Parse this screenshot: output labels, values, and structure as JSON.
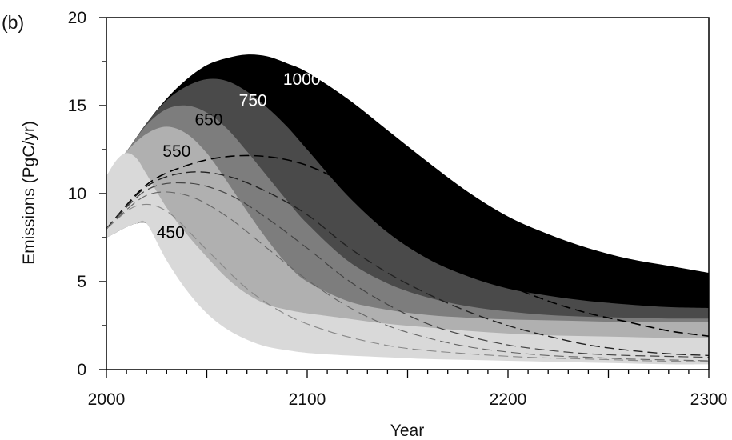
{
  "chart_data": {
    "type": "area",
    "panel_label": "(b)",
    "xlabel": "Year",
    "ylabel": "Emissions (PgC/yr)",
    "xlim": [
      2000,
      2300
    ],
    "ylim": [
      0,
      20
    ],
    "x_ticks": [
      2000,
      2100,
      2200,
      2300
    ],
    "y_ticks": [
      0,
      5,
      10,
      15,
      20
    ],
    "grid": false,
    "legend": "none",
    "bands": [
      {
        "label": "1000",
        "color": "#000000",
        "label_color": "#ffffff",
        "label_at": [
          2088,
          16.5
        ],
        "upper": [
          [
            2000,
            11.0
          ],
          [
            2010,
            12.4
          ],
          [
            2020,
            14.0
          ],
          [
            2030,
            15.4
          ],
          [
            2040,
            16.5
          ],
          [
            2050,
            17.3
          ],
          [
            2060,
            17.7
          ],
          [
            2070,
            17.9
          ],
          [
            2080,
            17.8
          ],
          [
            2090,
            17.4
          ],
          [
            2100,
            16.9
          ],
          [
            2120,
            15.4
          ],
          [
            2140,
            13.6
          ],
          [
            2160,
            11.8
          ],
          [
            2180,
            10.1
          ],
          [
            2200,
            8.7
          ],
          [
            2220,
            7.7
          ],
          [
            2240,
            6.9
          ],
          [
            2260,
            6.3
          ],
          [
            2280,
            5.9
          ],
          [
            2300,
            5.5
          ]
        ],
        "lower": [
          [
            2000,
            7.5
          ],
          [
            2005,
            7.8
          ],
          [
            2010,
            8.1
          ],
          [
            2015,
            8.3
          ],
          [
            2020,
            8.3
          ],
          [
            2030,
            7.6
          ],
          [
            2040,
            6.7
          ],
          [
            2050,
            5.7
          ],
          [
            2060,
            4.8
          ],
          [
            2070,
            4.1
          ],
          [
            2080,
            3.6
          ],
          [
            2090,
            3.3
          ],
          [
            2100,
            3.1
          ],
          [
            2120,
            2.7
          ],
          [
            2140,
            2.3
          ],
          [
            2160,
            2.0
          ],
          [
            2180,
            1.7
          ],
          [
            2200,
            1.5
          ],
          [
            2220,
            1.3
          ],
          [
            2240,
            1.15
          ],
          [
            2260,
            1.0
          ],
          [
            2280,
            0.9
          ],
          [
            2300,
            0.8
          ]
        ]
      },
      {
        "label": "750",
        "color": "#4a4a4a",
        "label_color": "#ffffff",
        "label_at": [
          2066,
          15.3
        ],
        "upper": [
          [
            2000,
            11.0
          ],
          [
            2010,
            12.4
          ],
          [
            2020,
            14.0
          ],
          [
            2030,
            15.3
          ],
          [
            2040,
            16.1
          ],
          [
            2050,
            16.5
          ],
          [
            2060,
            16.4
          ],
          [
            2070,
            15.8
          ],
          [
            2080,
            14.9
          ],
          [
            2090,
            13.8
          ],
          [
            2100,
            12.5
          ],
          [
            2120,
            9.9
          ],
          [
            2140,
            7.8
          ],
          [
            2160,
            6.3
          ],
          [
            2180,
            5.3
          ],
          [
            2200,
            4.6
          ],
          [
            2220,
            4.2
          ],
          [
            2240,
            3.9
          ],
          [
            2260,
            3.7
          ],
          [
            2280,
            3.55
          ],
          [
            2300,
            3.5
          ]
        ],
        "lower": [
          [
            2000,
            7.5
          ],
          [
            2005,
            7.8
          ],
          [
            2010,
            8.1
          ],
          [
            2015,
            8.3
          ],
          [
            2020,
            8.3
          ],
          [
            2030,
            7.6
          ],
          [
            2040,
            6.7
          ],
          [
            2050,
            5.7
          ],
          [
            2060,
            4.8
          ],
          [
            2070,
            4.1
          ],
          [
            2080,
            3.6
          ],
          [
            2090,
            3.3
          ],
          [
            2100,
            3.1
          ],
          [
            2120,
            2.7
          ],
          [
            2140,
            2.3
          ],
          [
            2160,
            2.0
          ],
          [
            2180,
            1.7
          ],
          [
            2200,
            1.5
          ],
          [
            2220,
            1.3
          ],
          [
            2240,
            1.15
          ],
          [
            2260,
            1.0
          ],
          [
            2280,
            0.9
          ],
          [
            2300,
            0.8
          ]
        ]
      },
      {
        "label": "650",
        "color": "#7d7d7d",
        "label_color": "#000000",
        "label_at": [
          2044,
          14.2
        ],
        "upper": [
          [
            2000,
            11.0
          ],
          [
            2010,
            12.4
          ],
          [
            2020,
            13.9
          ],
          [
            2030,
            14.8
          ],
          [
            2040,
            15.0
          ],
          [
            2050,
            14.6
          ],
          [
            2060,
            13.7
          ],
          [
            2070,
            12.4
          ],
          [
            2080,
            11.0
          ],
          [
            2090,
            9.6
          ],
          [
            2100,
            8.3
          ],
          [
            2120,
            6.2
          ],
          [
            2140,
            4.9
          ],
          [
            2160,
            4.1
          ],
          [
            2180,
            3.6
          ],
          [
            2200,
            3.3
          ],
          [
            2220,
            3.1
          ],
          [
            2240,
            3.0
          ],
          [
            2260,
            2.95
          ],
          [
            2280,
            2.9
          ],
          [
            2300,
            2.9
          ]
        ],
        "lower": [
          [
            2000,
            7.5
          ],
          [
            2005,
            7.8
          ],
          [
            2010,
            8.1
          ],
          [
            2015,
            8.3
          ],
          [
            2020,
            8.3
          ],
          [
            2030,
            7.6
          ],
          [
            2040,
            6.7
          ],
          [
            2050,
            5.7
          ],
          [
            2060,
            4.8
          ],
          [
            2070,
            4.1
          ],
          [
            2080,
            3.6
          ],
          [
            2090,
            3.3
          ],
          [
            2100,
            3.1
          ],
          [
            2120,
            2.7
          ],
          [
            2140,
            2.3
          ],
          [
            2160,
            2.0
          ],
          [
            2180,
            1.7
          ],
          [
            2200,
            1.5
          ],
          [
            2220,
            1.3
          ],
          [
            2240,
            1.15
          ],
          [
            2260,
            1.0
          ],
          [
            2280,
            0.9
          ],
          [
            2300,
            0.8
          ]
        ]
      },
      {
        "label": "550",
        "color": "#b0b0b0",
        "label_color": "#000000",
        "label_at": [
          2028,
          12.4
        ],
        "upper": [
          [
            2000,
            11.0
          ],
          [
            2010,
            12.4
          ],
          [
            2020,
            13.4
          ],
          [
            2030,
            13.8
          ],
          [
            2040,
            13.4
          ],
          [
            2050,
            12.3
          ],
          [
            2060,
            10.7
          ],
          [
            2070,
            9.0
          ],
          [
            2080,
            7.4
          ],
          [
            2090,
            6.0
          ],
          [
            2100,
            5.0
          ],
          [
            2120,
            3.9
          ],
          [
            2140,
            3.4
          ],
          [
            2160,
            3.1
          ],
          [
            2180,
            2.95
          ],
          [
            2200,
            2.85
          ],
          [
            2220,
            2.8
          ],
          [
            2240,
            2.75
          ],
          [
            2260,
            2.7
          ],
          [
            2280,
            2.7
          ],
          [
            2300,
            2.7
          ]
        ],
        "lower": [
          [
            2000,
            7.5
          ],
          [
            2005,
            7.8
          ],
          [
            2010,
            8.1
          ],
          [
            2015,
            8.3
          ],
          [
            2020,
            8.3
          ],
          [
            2030,
            7.6
          ],
          [
            2040,
            6.7
          ],
          [
            2050,
            5.7
          ],
          [
            2060,
            4.8
          ],
          [
            2070,
            4.1
          ],
          [
            2080,
            3.6
          ],
          [
            2090,
            3.3
          ],
          [
            2100,
            3.1
          ],
          [
            2120,
            2.7
          ],
          [
            2140,
            2.3
          ],
          [
            2160,
            2.0
          ],
          [
            2180,
            1.7
          ],
          [
            2200,
            1.5
          ],
          [
            2220,
            1.3
          ],
          [
            2240,
            1.15
          ],
          [
            2260,
            1.0
          ],
          [
            2280,
            0.9
          ],
          [
            2300,
            0.8
          ]
        ]
      },
      {
        "label": "450",
        "color": "#d9d9d9",
        "label_color": "#000000",
        "label_at": [
          2025,
          7.8
        ],
        "upper": [
          [
            2000,
            11.0
          ],
          [
            2005,
            11.9
          ],
          [
            2010,
            12.3
          ],
          [
            2015,
            12.0
          ],
          [
            2020,
            11.1
          ],
          [
            2030,
            9.2
          ],
          [
            2040,
            7.7
          ],
          [
            2050,
            6.4
          ],
          [
            2060,
            5.2
          ],
          [
            2070,
            4.3
          ],
          [
            2080,
            3.7
          ],
          [
            2090,
            3.4
          ],
          [
            2100,
            3.2
          ],
          [
            2120,
            2.9
          ],
          [
            2140,
            2.6
          ],
          [
            2160,
            2.4
          ],
          [
            2180,
            2.2
          ],
          [
            2200,
            2.05
          ],
          [
            2220,
            1.95
          ],
          [
            2240,
            1.9
          ],
          [
            2260,
            1.85
          ],
          [
            2280,
            1.8
          ],
          [
            2300,
            1.8
          ]
        ],
        "lower": [
          [
            2000,
            7.5
          ],
          [
            2005,
            7.8
          ],
          [
            2010,
            8.1
          ],
          [
            2015,
            8.3
          ],
          [
            2020,
            8.3
          ],
          [
            2030,
            6.2
          ],
          [
            2040,
            4.5
          ],
          [
            2050,
            3.2
          ],
          [
            2060,
            2.3
          ],
          [
            2070,
            1.7
          ],
          [
            2080,
            1.3
          ],
          [
            2090,
            1.1
          ],
          [
            2100,
            0.95
          ],
          [
            2120,
            0.8
          ],
          [
            2140,
            0.7
          ],
          [
            2160,
            0.6
          ],
          [
            2180,
            0.55
          ],
          [
            2200,
            0.5
          ],
          [
            2220,
            0.45
          ],
          [
            2240,
            0.4
          ],
          [
            2260,
            0.35
          ],
          [
            2280,
            0.3
          ],
          [
            2300,
            0.3
          ]
        ]
      }
    ],
    "dashed_series": [
      {
        "color": "#000000",
        "width": 1.6,
        "points": [
          [
            2000,
            8.0
          ],
          [
            2020,
            10.5
          ],
          [
            2040,
            11.6
          ],
          [
            2060,
            12.1
          ],
          [
            2080,
            12.1
          ],
          [
            2100,
            11.6
          ],
          [
            2120,
            10.5
          ],
          [
            2140,
            9.0
          ],
          [
            2160,
            7.5
          ],
          [
            2180,
            6.0
          ],
          [
            2200,
            4.8
          ],
          [
            2220,
            3.9
          ],
          [
            2240,
            3.2
          ],
          [
            2260,
            2.7
          ],
          [
            2280,
            2.2
          ],
          [
            2300,
            1.9
          ]
        ]
      },
      {
        "color": "#222222",
        "width": 1.4,
        "points": [
          [
            2000,
            8.0
          ],
          [
            2020,
            10.4
          ],
          [
            2040,
            11.2
          ],
          [
            2060,
            11.0
          ],
          [
            2080,
            10.1
          ],
          [
            2100,
            8.8
          ],
          [
            2120,
            7.0
          ],
          [
            2140,
            5.5
          ],
          [
            2160,
            4.3
          ],
          [
            2180,
            3.3
          ],
          [
            2200,
            2.5
          ],
          [
            2220,
            1.9
          ],
          [
            2240,
            1.4
          ],
          [
            2260,
            1.1
          ],
          [
            2280,
            0.9
          ],
          [
            2300,
            0.8
          ]
        ]
      },
      {
        "color": "#444444",
        "width": 1.2,
        "points": [
          [
            2000,
            8.0
          ],
          [
            2020,
            10.2
          ],
          [
            2040,
            10.6
          ],
          [
            2060,
            10.0
          ],
          [
            2080,
            8.6
          ],
          [
            2100,
            6.9
          ],
          [
            2120,
            5.1
          ],
          [
            2140,
            3.7
          ],
          [
            2160,
            2.6
          ],
          [
            2180,
            1.9
          ],
          [
            2200,
            1.4
          ],
          [
            2220,
            1.1
          ],
          [
            2240,
            0.9
          ],
          [
            2260,
            0.8
          ],
          [
            2280,
            0.75
          ],
          [
            2300,
            0.7
          ]
        ]
      },
      {
        "color": "#666666",
        "width": 1.1,
        "points": [
          [
            2000,
            8.0
          ],
          [
            2020,
            9.9
          ],
          [
            2040,
            9.9
          ],
          [
            2060,
            8.7
          ],
          [
            2080,
            6.9
          ],
          [
            2100,
            5.1
          ],
          [
            2120,
            3.6
          ],
          [
            2140,
            2.5
          ],
          [
            2160,
            1.8
          ],
          [
            2180,
            1.3
          ],
          [
            2200,
            1.0
          ],
          [
            2220,
            0.8
          ],
          [
            2240,
            0.7
          ],
          [
            2260,
            0.6
          ],
          [
            2280,
            0.55
          ],
          [
            2300,
            0.5
          ]
        ]
      },
      {
        "color": "#888888",
        "width": 1.1,
        "points": [
          [
            2000,
            8.0
          ],
          [
            2015,
            9.3
          ],
          [
            2030,
            9.0
          ],
          [
            2050,
            6.8
          ],
          [
            2070,
            4.6
          ],
          [
            2090,
            3.1
          ],
          [
            2110,
            2.2
          ],
          [
            2130,
            1.6
          ],
          [
            2150,
            1.2
          ],
          [
            2180,
            0.9
          ],
          [
            2210,
            0.7
          ],
          [
            2240,
            0.6
          ],
          [
            2270,
            0.5
          ],
          [
            2300,
            0.45
          ]
        ]
      }
    ]
  }
}
